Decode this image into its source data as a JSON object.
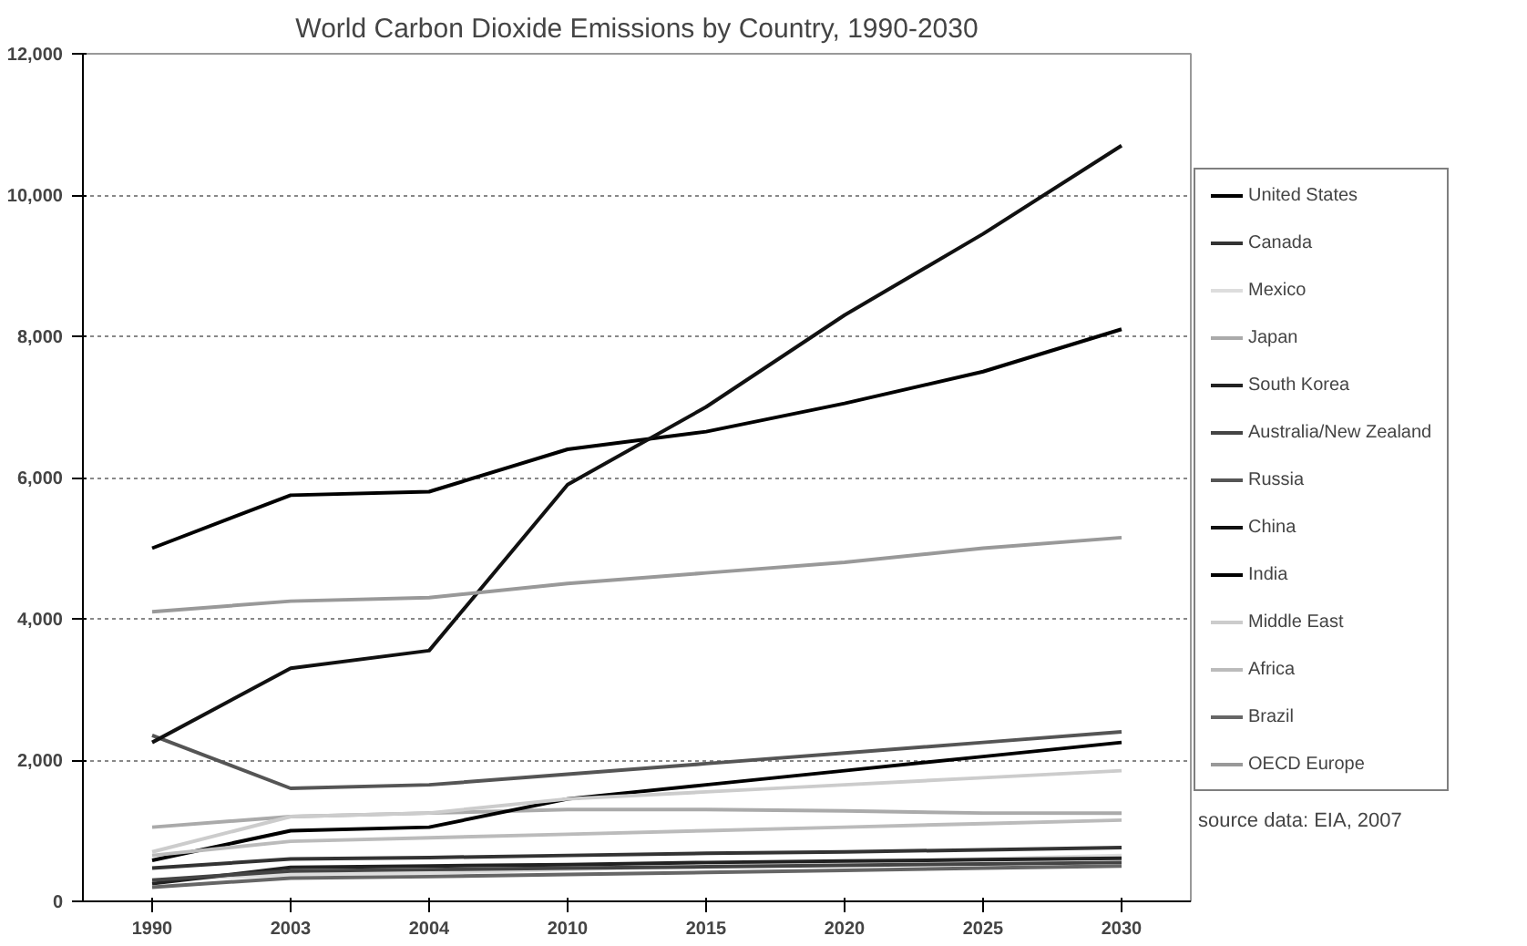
{
  "chart_data": {
    "type": "line",
    "title": "World Carbon Dioxide Emissions by Country, 1990-2030",
    "categories": [
      "1990",
      "2003",
      "2004",
      "2010",
      "2015",
      "2020",
      "2025",
      "2030"
    ],
    "ylim": [
      0,
      12000
    ],
    "yticks": [
      {
        "value": 0,
        "label": "0"
      },
      {
        "value": 2000,
        "label": "2,000"
      },
      {
        "value": 4000,
        "label": "4,000"
      },
      {
        "value": 6000,
        "label": "6,000"
      },
      {
        "value": 8000,
        "label": "8,000"
      },
      {
        "value": 10000,
        "label": "10,000"
      },
      {
        "value": 12000,
        "label": "12,000"
      }
    ],
    "grid": "y",
    "legend": "right",
    "line_style": "solid",
    "series": [
      {
        "name": "United States",
        "color": "#000000",
        "values": [
          5000,
          5750,
          5800,
          6400,
          6650,
          7050,
          7500,
          8100
        ]
      },
      {
        "name": "Canada",
        "color": "#333333",
        "values": [
          470,
          600,
          620,
          650,
          680,
          700,
          730,
          760
        ]
      },
      {
        "name": "Mexico",
        "color": "#dddddd",
        "values": [
          300,
          380,
          400,
          450,
          500,
          550,
          600,
          650
        ]
      },
      {
        "name": "Japan",
        "color": "#aaaaaa",
        "values": [
          1050,
          1200,
          1250,
          1300,
          1300,
          1280,
          1250,
          1250
        ]
      },
      {
        "name": "South Korea",
        "color": "#222222",
        "values": [
          250,
          480,
          500,
          520,
          550,
          570,
          590,
          610
        ]
      },
      {
        "name": "Australia/New Zealand",
        "color": "#444444",
        "values": [
          300,
          430,
          450,
          470,
          490,
          510,
          530,
          550
        ]
      },
      {
        "name": "Russia",
        "color": "#555555",
        "values": [
          2350,
          1600,
          1650,
          1800,
          1950,
          2100,
          2250,
          2400
        ]
      },
      {
        "name": "China",
        "color": "#111111",
        "values": [
          2250,
          3300,
          3550,
          5900,
          7000,
          8300,
          9450,
          10700
        ]
      },
      {
        "name": "India",
        "color": "#000000",
        "values": [
          580,
          1000,
          1050,
          1450,
          1650,
          1850,
          2050,
          2250
        ]
      },
      {
        "name": "Middle East",
        "color": "#cccccc",
        "values": [
          700,
          1200,
          1250,
          1450,
          1550,
          1650,
          1750,
          1850
        ]
      },
      {
        "name": "Africa",
        "color": "#bbbbbb",
        "values": [
          650,
          850,
          900,
          950,
          1000,
          1050,
          1100,
          1150
        ]
      },
      {
        "name": "Brazil",
        "color": "#666666",
        "values": [
          200,
          330,
          350,
          380,
          410,
          440,
          470,
          500
        ]
      },
      {
        "name": "OECD Europe",
        "color": "#999999",
        "values": [
          4100,
          4250,
          4300,
          4500,
          4650,
          4800,
          5000,
          5150
        ]
      }
    ],
    "annotations": [
      "source data: EIA, 2007"
    ]
  }
}
